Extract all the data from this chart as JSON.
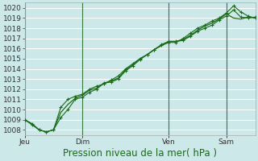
{
  "background_color": "#cce8e8",
  "grid_color": "#aacccc",
  "line_color": "#1a6b1a",
  "ylim": [
    1007.5,
    1020.5
  ],
  "yticks": [
    1008,
    1009,
    1010,
    1011,
    1012,
    1013,
    1014,
    1015,
    1016,
    1017,
    1018,
    1019,
    1020
  ],
  "xlabel": "Pression niveau de la mer( hPa )",
  "xlabel_fontsize": 8.5,
  "tick_label_fontsize": 6.5,
  "day_labels": [
    "Jeu",
    "Dim",
    "Ven",
    "Sam"
  ],
  "day_positions": [
    0,
    48,
    120,
    168
  ],
  "xlim": [
    0,
    192
  ],
  "series1": {
    "x": [
      0,
      6,
      12,
      18,
      24,
      30,
      36,
      42,
      48,
      54,
      60,
      66,
      72,
      78,
      84,
      90,
      96,
      102,
      108,
      114,
      120,
      126,
      132,
      138,
      144,
      150,
      156,
      162,
      168,
      174,
      180,
      186,
      192
    ],
    "y": [
      1009.0,
      1008.6,
      1008.0,
      1007.8,
      1008.0,
      1010.2,
      1011.0,
      1011.3,
      1011.5,
      1012.0,
      1012.3,
      1012.5,
      1012.9,
      1013.3,
      1014.0,
      1014.5,
      1015.0,
      1015.4,
      1015.9,
      1016.4,
      1016.7,
      1016.7,
      1016.8,
      1017.2,
      1017.7,
      1018.0,
      1018.3,
      1018.8,
      1019.2,
      1019.8,
      1019.1,
      1019.0,
      1019.1
    ]
  },
  "series2": {
    "x": [
      0,
      6,
      12,
      18,
      24,
      30,
      36,
      42,
      48,
      54,
      60,
      66,
      72,
      78,
      84,
      90,
      96,
      102,
      108,
      114,
      120,
      126,
      132,
      138,
      144,
      150,
      156,
      162,
      168,
      174,
      180,
      186,
      192
    ],
    "y": [
      1009.0,
      1008.5,
      1008.0,
      1007.8,
      1008.0,
      1009.2,
      1010.0,
      1011.0,
      1011.2,
      1011.7,
      1012.0,
      1012.6,
      1012.7,
      1013.0,
      1013.8,
      1014.3,
      1014.9,
      1015.4,
      1015.9,
      1016.3,
      1016.6,
      1016.6,
      1017.0,
      1017.5,
      1018.0,
      1018.3,
      1018.7,
      1019.0,
      1019.5,
      1020.2,
      1019.6,
      1019.2,
      1019.0
    ]
  },
  "series3": {
    "x": [
      0,
      6,
      12,
      18,
      24,
      30,
      36,
      42,
      48,
      54,
      60,
      66,
      72,
      78,
      84,
      90,
      96,
      102,
      108,
      114,
      120,
      126,
      132,
      138,
      144,
      150,
      156,
      162,
      168,
      174,
      180,
      186,
      192
    ],
    "y": [
      1009.0,
      1008.6,
      1008.0,
      1007.8,
      1008.0,
      1009.7,
      1010.5,
      1011.1,
      1011.4,
      1011.9,
      1012.1,
      1012.6,
      1012.8,
      1013.1,
      1013.9,
      1014.4,
      1015.0,
      1015.4,
      1015.9,
      1016.3,
      1016.7,
      1016.7,
      1016.9,
      1017.3,
      1017.8,
      1018.2,
      1018.5,
      1018.9,
      1019.4,
      1019.0,
      1018.9,
      1019.1,
      1019.0
    ]
  }
}
